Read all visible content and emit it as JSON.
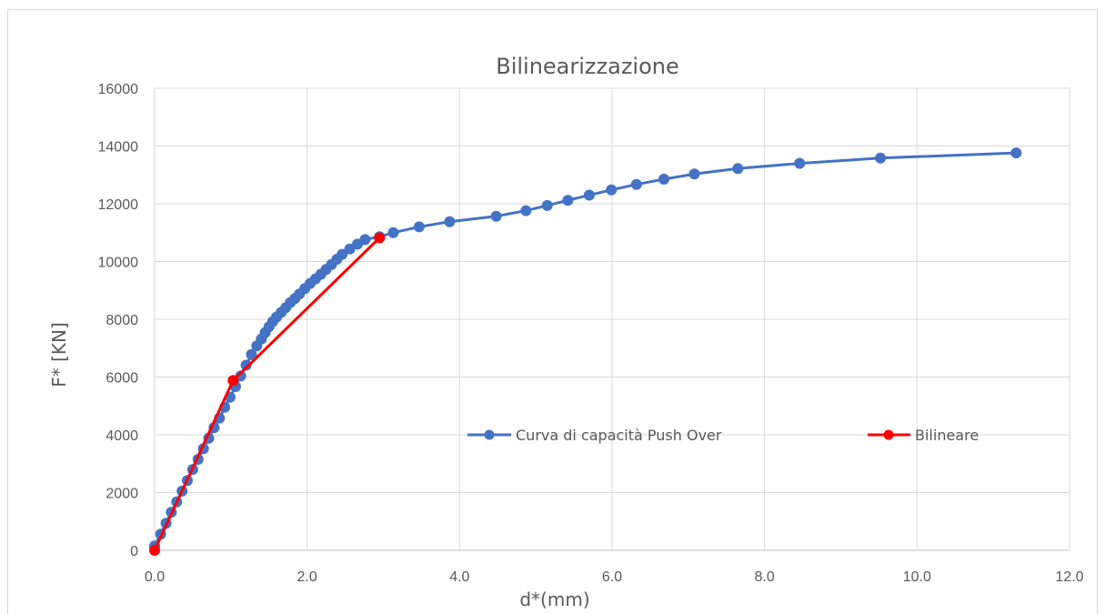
{
  "chart_data": {
    "type": "line",
    "title": "Bilinearizzazione",
    "xlabel": "d*(mm)",
    "ylabel": "F* [KN]",
    "xlim": [
      0,
      12
    ],
    "ylim": [
      0,
      16000
    ],
    "x_ticks": [
      "0.0",
      "2.0",
      "4.0",
      "6.0",
      "8.0",
      "10.0",
      "12.0"
    ],
    "y_ticks": [
      "0",
      "2000",
      "4000",
      "6000",
      "8000",
      "10000",
      "12000",
      "14000",
      "16000"
    ],
    "grid": true,
    "legend_position": "inside-center-right",
    "series": [
      {
        "name": "Curva di capacità Push Over",
        "color": "#4472c4",
        "x": [
          0.0,
          0.08,
          0.15,
          0.22,
          0.29,
          0.36,
          0.43,
          0.5,
          0.57,
          0.64,
          0.71,
          0.78,
          0.85,
          0.92,
          0.99,
          1.06,
          1.13,
          1.2,
          1.27,
          1.34,
          1.4,
          1.45,
          1.5,
          1.55,
          1.6,
          1.66,
          1.72,
          1.78,
          1.84,
          1.9,
          1.97,
          2.04,
          2.11,
          2.18,
          2.25,
          2.32,
          2.39,
          2.46,
          2.56,
          2.66,
          2.76,
          2.95,
          3.13,
          3.47,
          3.87,
          4.48,
          4.87,
          5.15,
          5.42,
          5.7,
          5.99,
          6.32,
          6.68,
          7.08,
          7.65,
          8.46,
          9.52,
          11.3
        ],
        "y": [
          150,
          560,
          940,
          1320,
          1680,
          2050,
          2420,
          2800,
          3150,
          3520,
          3880,
          4250,
          4580,
          4950,
          5300,
          5670,
          6040,
          6410,
          6780,
          7080,
          7320,
          7540,
          7740,
          7920,
          8080,
          8240,
          8400,
          8580,
          8720,
          8880,
          9060,
          9240,
          9400,
          9560,
          9730,
          9900,
          10080,
          10250,
          10430,
          10600,
          10760,
          10860,
          11000,
          11200,
          11380,
          11570,
          11760,
          11940,
          12120,
          12300,
          12480,
          12670,
          12850,
          13030,
          13220,
          13400,
          13580,
          13760
        ]
      },
      {
        "name": "Bilineare",
        "color": "#ff0000",
        "x": [
          0.0,
          1.03,
          2.95
        ],
        "y": [
          0,
          5880,
          10820
        ]
      }
    ]
  }
}
